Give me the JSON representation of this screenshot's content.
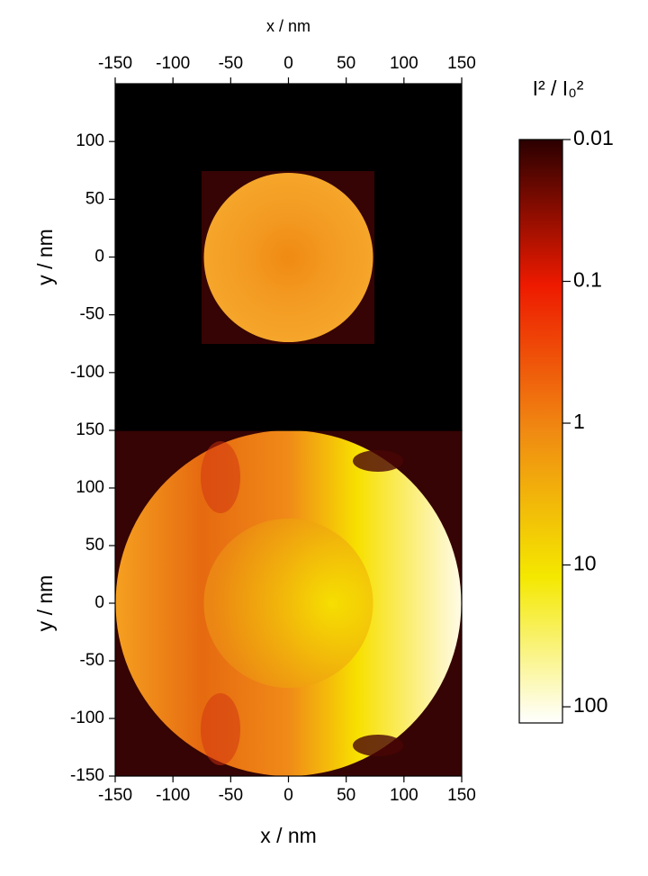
{
  "chart_data": [
    {
      "type": "heatmap",
      "x_label": "x / nm",
      "y_label": "y / nm",
      "x_axis_position": "top",
      "xlim": [
        -150,
        150
      ],
      "xticks": [
        -150,
        -100,
        -50,
        0,
        50,
        100,
        150
      ],
      "ylim": [
        -150,
        150
      ],
      "yticks": [
        -100,
        -50,
        0,
        50,
        100
      ]
    },
    {
      "type": "heatmap",
      "x_label": "x / nm",
      "y_label": "y / nm",
      "x_axis_position": "bottom",
      "xlim": [
        -150,
        150
      ],
      "xticks": [
        -150,
        -100,
        -50,
        0,
        50,
        100,
        150
      ],
      "ylim": [
        -150,
        150
      ],
      "yticks": [
        -150,
        -100,
        -50,
        0,
        50,
        100,
        150
      ]
    },
    {
      "type": "colorbar",
      "label": "I² / I₀²",
      "log_scale": true,
      "lim": [
        0.01,
        130
      ],
      "ticks": [
        0.01,
        0.1,
        1,
        10,
        100
      ],
      "colors": [
        "#2a0000",
        "#ee1a00",
        "#f08a12",
        "#f4e800",
        "#ffffff"
      ]
    }
  ]
}
